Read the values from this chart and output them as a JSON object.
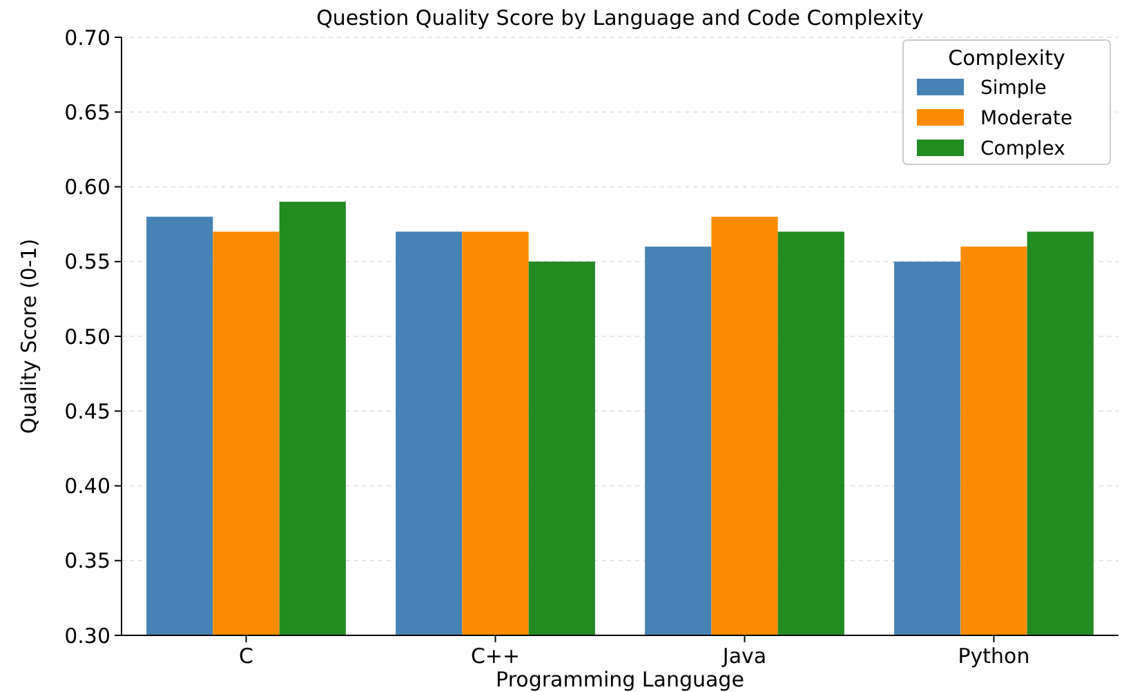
{
  "chart_data": {
    "type": "bar",
    "title": "Question Quality Score by Language and Code Complexity",
    "xlabel": "Programming Language",
    "ylabel": "Quality Score (0-1)",
    "legend_title": "Complexity",
    "categories": [
      "C",
      "C++",
      "Java",
      "Python"
    ],
    "series": [
      {
        "name": "Simple",
        "color": "#4682b4",
        "values": [
          0.58,
          0.57,
          0.56,
          0.55
        ]
      },
      {
        "name": "Moderate",
        "color": "#ff8c00",
        "values": [
          0.57,
          0.57,
          0.58,
          0.56
        ]
      },
      {
        "name": "Complex",
        "color": "#228b22",
        "values": [
          0.59,
          0.55,
          0.57,
          0.57
        ]
      }
    ],
    "ylim": [
      0.3,
      0.7
    ],
    "yticks": [
      {
        "value": 0.3,
        "label": "0.30"
      },
      {
        "value": 0.35,
        "label": "0.35"
      },
      {
        "value": 0.4,
        "label": "0.40"
      },
      {
        "value": 0.45,
        "label": "0.45"
      },
      {
        "value": 0.5,
        "label": "0.50"
      },
      {
        "value": 0.55,
        "label": "0.55"
      },
      {
        "value": 0.6,
        "label": "0.60"
      },
      {
        "value": 0.65,
        "label": "0.65"
      },
      {
        "value": 0.7,
        "label": "0.70"
      }
    ],
    "grid": "y",
    "legend": "top right"
  }
}
